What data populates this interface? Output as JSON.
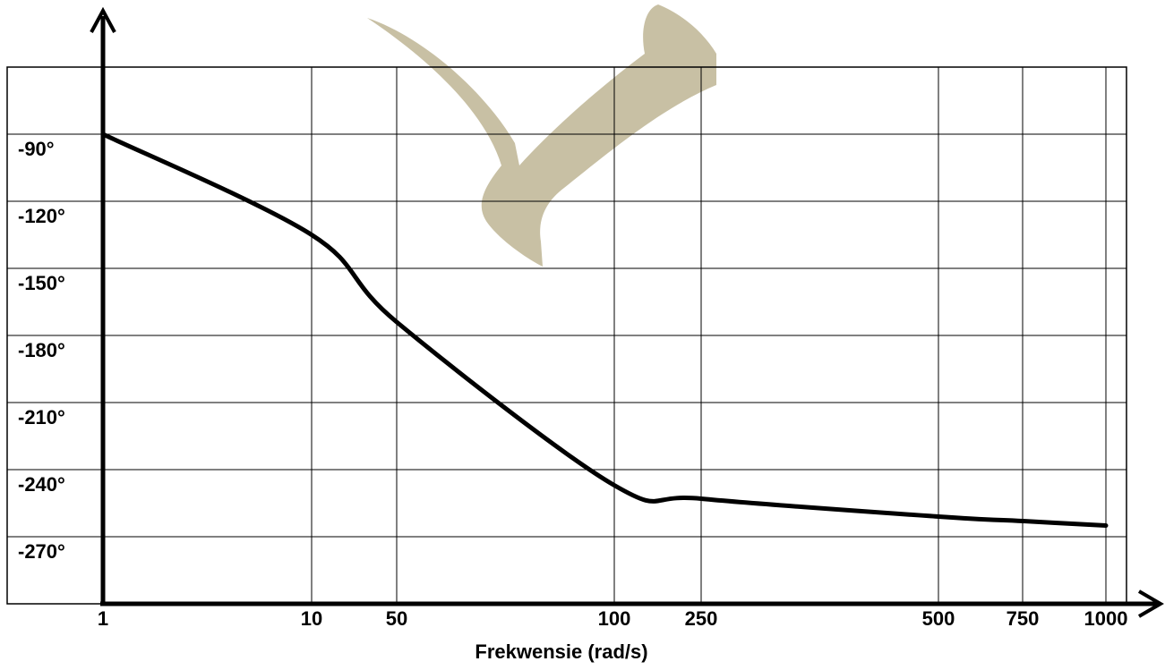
{
  "chart_data": {
    "type": "line",
    "x_label": "Frekwensie (rad/s)",
    "categories": [
      "1",
      "10",
      "50",
      "100",
      "250",
      "500",
      "750",
      "1000"
    ],
    "series": [
      {
        "color": "#000000",
        "values": [
          -90,
          -135,
          -174,
          -247,
          -253,
          -261,
          -263,
          -265
        ]
      }
    ],
    "ylim": [
      -300,
      -60
    ],
    "yticks": [
      {
        "value": -90,
        "label": "-90°"
      },
      {
        "value": -120,
        "label": "-120°"
      },
      {
        "value": -150,
        "label": "-150°"
      },
      {
        "value": -180,
        "label": "-180°"
      },
      {
        "value": -210,
        "label": "-210°"
      },
      {
        "value": -240,
        "label": "-240°"
      },
      {
        "value": -270,
        "label": "-270°"
      }
    ],
    "grid": true
  }
}
